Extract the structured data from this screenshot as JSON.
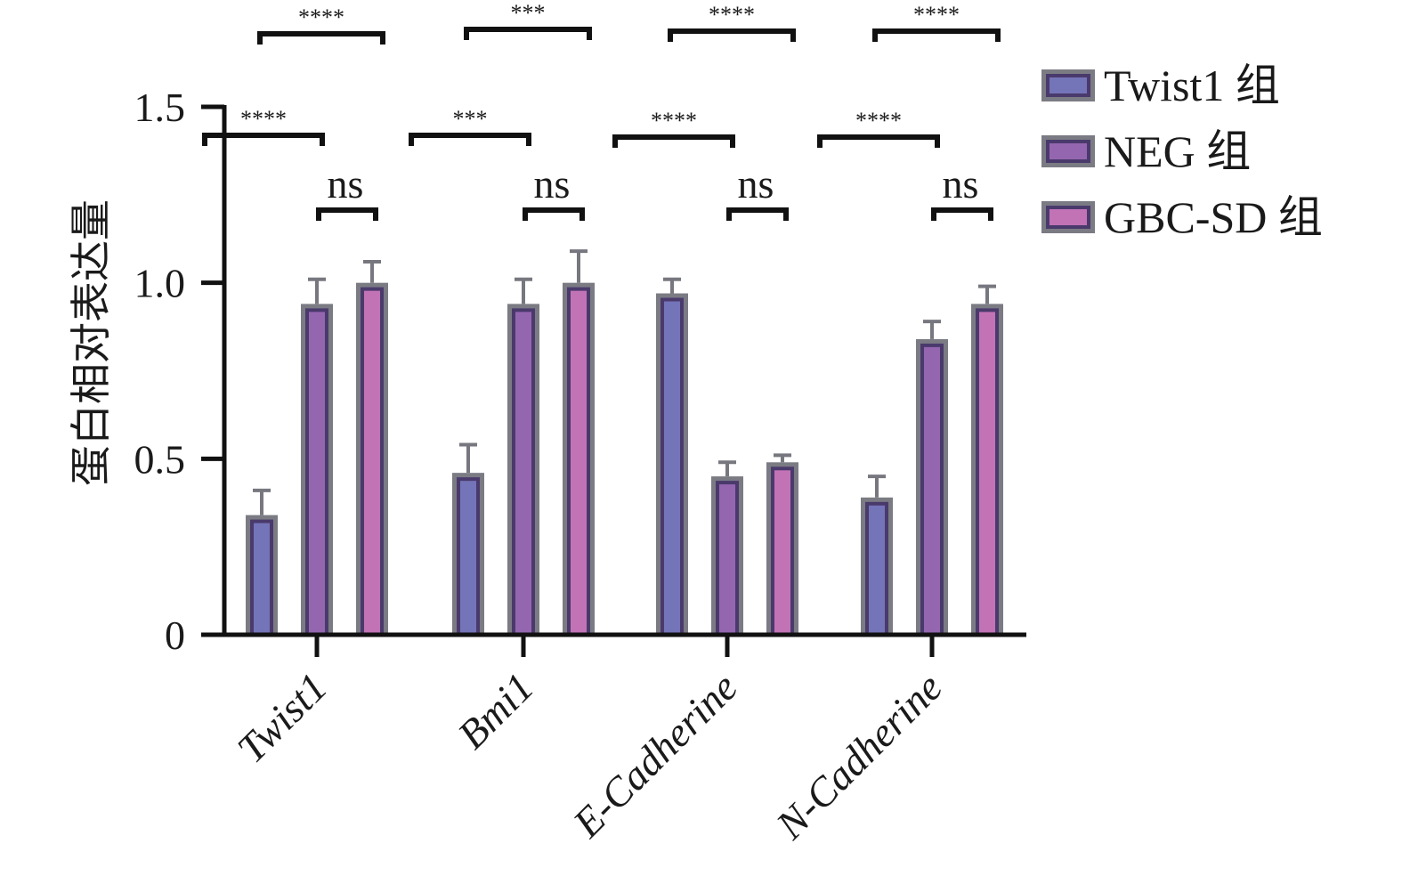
{
  "chart_data": {
    "type": "bar",
    "title": "",
    "xlabel": "",
    "ylabel": "蛋白相对表达量",
    "ylim": [
      0,
      1.5
    ],
    "yticks": [
      0,
      0.5,
      1.0,
      1.5
    ],
    "ytick_labels": [
      "0",
      "0.5",
      "1.0",
      "1.5"
    ],
    "categories": [
      "Twist1",
      "Bmi1",
      "E-Cadherine",
      "N-Cadherine"
    ],
    "series": [
      {
        "name": "Twist1 组",
        "color": "#7474b8",
        "values": [
          0.34,
          0.46,
          0.97,
          0.39
        ],
        "error": [
          0.07,
          0.08,
          0.04,
          0.06
        ]
      },
      {
        "name": "NEG 组",
        "color": "#9566b0",
        "values": [
          0.94,
          0.94,
          0.45,
          0.84
        ],
        "error": [
          0.07,
          0.07,
          0.04,
          0.05
        ]
      },
      {
        "name": "GBC-SD 组",
        "color": "#c273b6",
        "values": [
          1.0,
          1.0,
          0.49,
          0.94
        ],
        "error": [
          0.06,
          0.09,
          0.02,
          0.05
        ]
      }
    ],
    "bar_edge_color": "#7b7b84",
    "bar_inner_edge_color": "#4a3a6c",
    "legend": {
      "position": "top-right",
      "entries": [
        "Twist1 组",
        "NEG 组",
        "GBC-SD 组"
      ]
    },
    "grid": false,
    "significance": [
      {
        "category": "Twist1",
        "from": 0,
        "to": 2,
        "label": "****",
        "level": "top"
      },
      {
        "category": "Twist1",
        "from": 0,
        "to": 1,
        "label": "****",
        "level": "middle"
      },
      {
        "category": "Twist1",
        "from": 1,
        "to": 2,
        "label": "ns",
        "level": "low"
      },
      {
        "category": "Bmi1",
        "from": 0,
        "to": 2,
        "label": "***",
        "level": "top"
      },
      {
        "category": "Bmi1",
        "from": 0,
        "to": 1,
        "label": "***",
        "level": "middle"
      },
      {
        "category": "Bmi1",
        "from": 1,
        "to": 2,
        "label": "ns",
        "level": "low"
      },
      {
        "category": "E-Cadherine",
        "from": 0,
        "to": 2,
        "label": "****",
        "level": "top"
      },
      {
        "category": "E-Cadherine",
        "from": 0,
        "to": 1,
        "label": "****",
        "level": "middle"
      },
      {
        "category": "E-Cadherine",
        "from": 1,
        "to": 2,
        "label": "ns",
        "level": "low"
      },
      {
        "category": "N-Cadherine",
        "from": 0,
        "to": 2,
        "label": "****",
        "level": "top"
      },
      {
        "category": "N-Cadherine",
        "from": 0,
        "to": 1,
        "label": "****",
        "level": "middle"
      },
      {
        "category": "N-Cadherine",
        "from": 1,
        "to": 2,
        "label": "ns",
        "level": "low"
      }
    ]
  }
}
